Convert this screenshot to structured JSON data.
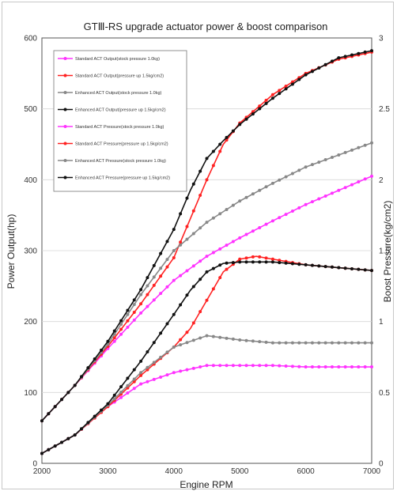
{
  "chart_data": {
    "type": "line",
    "title": "GTⅢ-RS upgrade actuator power & boost comparison",
    "xlabel": "Engine RPM",
    "ylabel_left": "Power Output(hp)",
    "ylabel_right": "Boost Pressure(kg/cm2)",
    "xlim": [
      2000,
      7000
    ],
    "ylim_left": [
      0,
      600
    ],
    "ylim_right": [
      0,
      3
    ],
    "x_ticks": [
      "2000",
      "3000",
      "4000",
      "5000",
      "6000",
      "7000"
    ],
    "y_ticks_left": [
      "0",
      "100",
      "200",
      "300",
      "400",
      "500",
      "600"
    ],
    "y_ticks_right": [
      "0",
      "0.5",
      "1",
      "1.5",
      "2",
      "2.5",
      "3"
    ],
    "grid": true,
    "legend_position": "top-left",
    "series": [
      {
        "name": "Standard ACT Output(stock pressure 1.0kg)",
        "axis": "left",
        "color": "#ff33ff",
        "x": [
          2000,
          2500,
          3000,
          3500,
          4000,
          4500,
          5000,
          5500,
          6000,
          6500,
          7000
        ],
        "values": [
          60,
          110,
          162,
          212,
          258,
          292,
          318,
          342,
          365,
          385,
          405
        ]
      },
      {
        "name": "Standard ACT Output(pressure up 1.5kg/cm2)",
        "axis": "left",
        "color": "#ff2222",
        "x": [
          2000,
          2500,
          3000,
          3500,
          4000,
          4250,
          4500,
          4750,
          5000,
          5500,
          6000,
          6500,
          7000
        ],
        "values": [
          60,
          110,
          165,
          225,
          290,
          345,
          400,
          450,
          480,
          520,
          550,
          570,
          580
        ]
      },
      {
        "name": "Enhanced ACT Output(stock pressure 1.0kg)",
        "axis": "left",
        "color": "#888888",
        "x": [
          2000,
          2500,
          3000,
          3500,
          4000,
          4500,
          5000,
          5500,
          6000,
          6500,
          7000
        ],
        "values": [
          60,
          110,
          168,
          238,
          300,
          340,
          370,
          395,
          418,
          435,
          452
        ]
      },
      {
        "name": "Enhanced ACT Output(pressure up 1.5kg/cm2)",
        "axis": "left",
        "color": "#111111",
        "x": [
          2000,
          2500,
          3000,
          3500,
          4000,
          4250,
          4500,
          4750,
          5000,
          5500,
          6000,
          6500,
          7000
        ],
        "values": [
          60,
          110,
          172,
          245,
          330,
          385,
          430,
          455,
          478,
          515,
          548,
          572,
          582
        ]
      },
      {
        "name": "Standard ACT Pressure(stock pressure 1.0kg)",
        "axis": "right",
        "color": "#ff33ff",
        "x": [
          2000,
          2500,
          3000,
          3500,
          4000,
          4500,
          5000,
          5500,
          6000,
          6500,
          7000
        ],
        "values": [
          0.07,
          0.2,
          0.4,
          0.56,
          0.64,
          0.69,
          0.69,
          0.69,
          0.68,
          0.68,
          0.68
        ]
      },
      {
        "name": "Standard ACT Pressure(pressure up 1.5kg/cm2)",
        "axis": "right",
        "color": "#ff2222",
        "x": [
          2000,
          2500,
          3000,
          3500,
          4000,
          4250,
          4500,
          4750,
          5000,
          5250,
          5500,
          6000,
          6500,
          7000
        ],
        "values": [
          0.07,
          0.2,
          0.4,
          0.62,
          0.82,
          0.95,
          1.15,
          1.35,
          1.44,
          1.46,
          1.44,
          1.4,
          1.38,
          1.36
        ]
      },
      {
        "name": "Enhanced ACT Pressure(stock pressure 1.0kg)",
        "axis": "right",
        "color": "#888888",
        "x": [
          2000,
          2500,
          3000,
          3500,
          4000,
          4500,
          5000,
          5500,
          6000,
          6500,
          7000
        ],
        "values": [
          0.07,
          0.2,
          0.41,
          0.64,
          0.82,
          0.9,
          0.87,
          0.85,
          0.85,
          0.85,
          0.85
        ]
      },
      {
        "name": "Enhanced ACT Pressure(pressure up 1.5kg/cm2)",
        "axis": "right",
        "color": "#111111",
        "x": [
          2000,
          2500,
          3000,
          3500,
          4000,
          4250,
          4500,
          4750,
          5000,
          5500,
          6000,
          6500,
          7000
        ],
        "values": [
          0.07,
          0.2,
          0.42,
          0.72,
          1.05,
          1.22,
          1.35,
          1.41,
          1.42,
          1.42,
          1.4,
          1.38,
          1.36
        ]
      }
    ]
  }
}
